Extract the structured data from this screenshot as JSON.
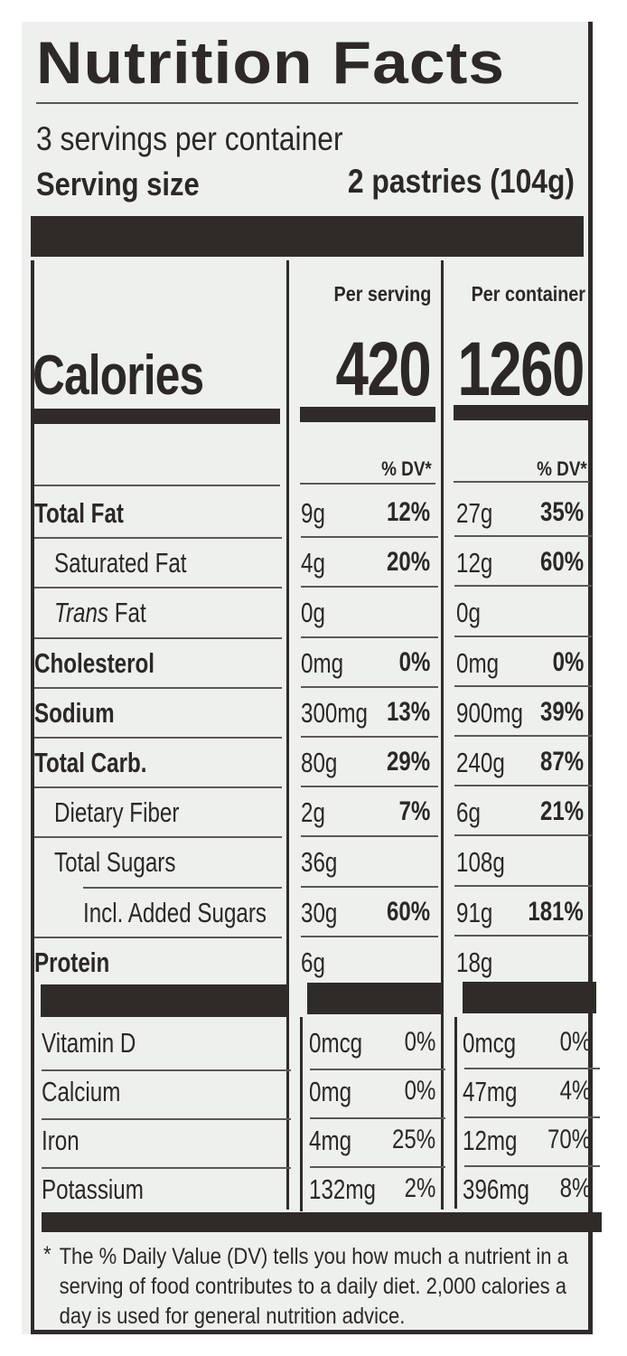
{
  "label": {
    "title": "Nutrition Facts",
    "servings_per_container": "3 servings per container",
    "serving_size_label": "Serving size",
    "serving_size_value": "2 pastries (104g)",
    "columns": {
      "per_serving": "Per serving",
      "per_container": "Per container"
    },
    "calories": {
      "label": "Calories",
      "per_serving": "420",
      "per_container": "1260"
    },
    "dv_header": "% DV*",
    "nutrients": [
      {
        "name": "Total Fat",
        "name_prefix": "",
        "bold": true,
        "indent": 0,
        "serving_amt": "9g",
        "serving_dv": "12%",
        "container_amt": "27g",
        "container_dv": "35%"
      },
      {
        "name": "Saturated Fat",
        "name_prefix": "",
        "bold": false,
        "indent": 1,
        "serving_amt": "4g",
        "serving_dv": "20%",
        "container_amt": "12g",
        "container_dv": "60%"
      },
      {
        "name": " Fat",
        "name_prefix": "Trans",
        "bold": false,
        "indent": 1,
        "serving_amt": "0g",
        "serving_dv": "",
        "container_amt": "0g",
        "container_dv": ""
      },
      {
        "name": "Cholesterol",
        "name_prefix": "",
        "bold": true,
        "indent": 0,
        "serving_amt": "0mg",
        "serving_dv": "0%",
        "container_amt": "0mg",
        "container_dv": "0%"
      },
      {
        "name": "Sodium",
        "name_prefix": "",
        "bold": true,
        "indent": 0,
        "serving_amt": "300mg",
        "serving_dv": "13%",
        "container_amt": "900mg",
        "container_dv": "39%"
      },
      {
        "name": "Total Carb.",
        "name_prefix": "",
        "bold": true,
        "indent": 0,
        "serving_amt": "80g",
        "serving_dv": "29%",
        "container_amt": "240g",
        "container_dv": "87%"
      },
      {
        "name": "Dietary Fiber",
        "name_prefix": "",
        "bold": false,
        "indent": 1,
        "serving_amt": "2g",
        "serving_dv": "7%",
        "container_amt": "6g",
        "container_dv": "21%"
      },
      {
        "name": "Total Sugars",
        "name_prefix": "",
        "bold": false,
        "indent": 1,
        "serving_amt": "36g",
        "serving_dv": "",
        "container_amt": "108g",
        "container_dv": ""
      },
      {
        "name": "Incl. Added Sugars",
        "name_prefix": "",
        "bold": false,
        "indent": 2,
        "serving_amt": "30g",
        "serving_dv": "60%",
        "container_amt": "91g",
        "container_dv": "181%"
      },
      {
        "name": "Protein",
        "name_prefix": "",
        "bold": true,
        "indent": 0,
        "serving_amt": "6g",
        "serving_dv": "",
        "container_amt": "18g",
        "container_dv": ""
      }
    ],
    "vitamins": [
      {
        "name": "Vitamin D",
        "serving_amt": "0mcg",
        "serving_dv": "0%",
        "container_amt": "0mcg",
        "container_dv": "0%"
      },
      {
        "name": "Calcium",
        "serving_amt": "0mg",
        "serving_dv": "0%",
        "container_amt": "47mg",
        "container_dv": "4%"
      },
      {
        "name": "Iron",
        "serving_amt": "4mg",
        "serving_dv": "25%",
        "container_amt": "12mg",
        "container_dv": "70%"
      },
      {
        "name": "Potassium",
        "serving_amt": "132mg",
        "serving_dv": "2%",
        "container_amt": "396mg",
        "container_dv": "8%"
      }
    ],
    "footnote_asterisk": "*",
    "footnote": "The % Daily Value (DV) tells you how much a nutrient in a serving of food contributes to a daily diet. 2,000 calories a day is used for general nutrition advice."
  },
  "colors": {
    "ink": "#2b2826",
    "bar": "#2f2b29",
    "background": "#eef0ee"
  }
}
